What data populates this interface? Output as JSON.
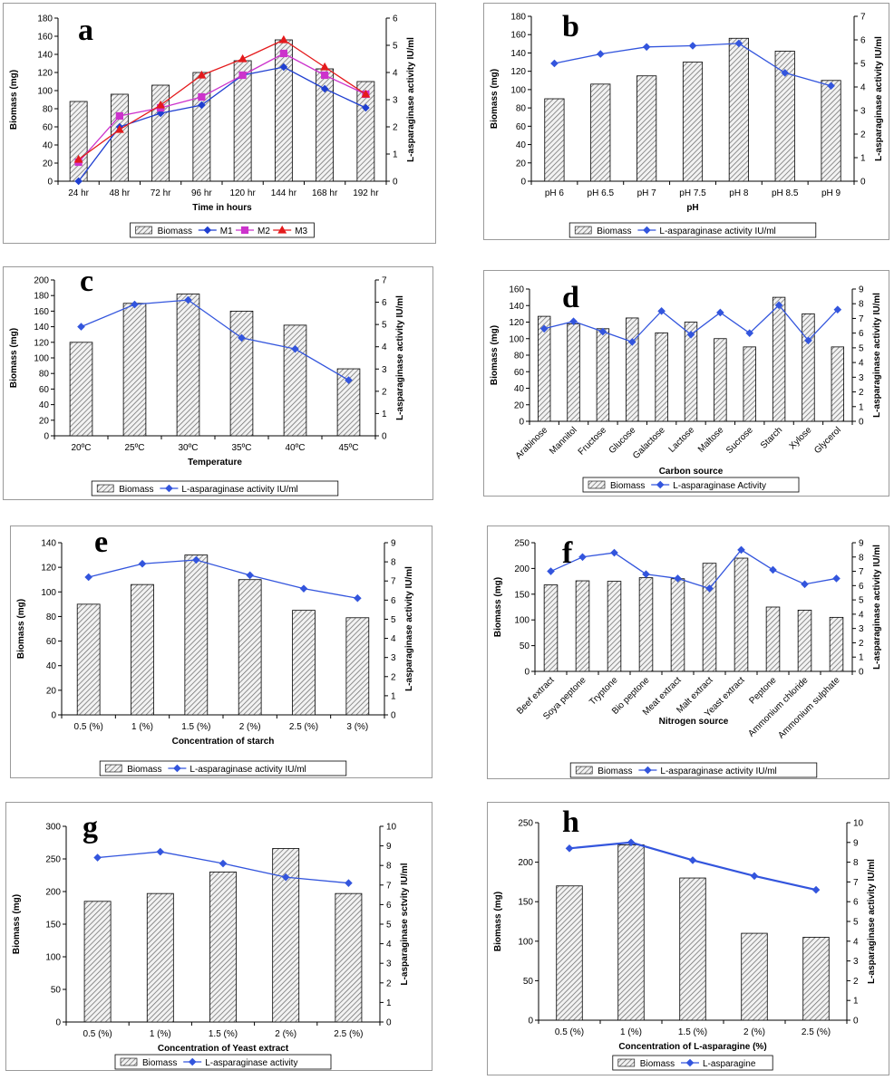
{
  "figure": {
    "colors": {
      "bar_fill": "#d9d9d9",
      "bar_stroke": "#000000",
      "blue": "#1f3fd1",
      "magenta": "#cc33cc",
      "red": "#e41a1c",
      "line_single": "#3355dd"
    }
  },
  "chart_data": [
    {
      "panel": "a",
      "type": "bar+line",
      "categories": [
        "24 hr",
        "48 hr",
        "72 hr",
        "96 hr",
        "120 hr",
        "144 hr",
        "168 hr",
        "192 hr"
      ],
      "bars": {
        "name": "Biomass",
        "values": [
          88,
          96,
          106,
          120,
          133,
          156,
          124,
          110
        ]
      },
      "lines": [
        {
          "name": "M1",
          "color": "#1f3fd1",
          "marker": "diamond",
          "values": [
            0,
            2.0,
            2.5,
            2.8,
            3.9,
            4.2,
            3.4,
            2.7
          ]
        },
        {
          "name": "M2",
          "color": "#cc33cc",
          "marker": "square",
          "values": [
            0.7,
            2.4,
            2.7,
            3.1,
            3.9,
            4.7,
            3.9,
            3.2
          ]
        },
        {
          "name": "M3",
          "color": "#e41a1c",
          "marker": "triangle",
          "values": [
            0.8,
            1.9,
            2.8,
            3.9,
            4.5,
            5.2,
            4.2,
            3.2
          ]
        }
      ],
      "ylim_left": [
        0,
        180
      ],
      "ytick_step_left": 20,
      "ylim_right": [
        0,
        6
      ],
      "ytick_step_right": 1,
      "xlabel": "Time in hours",
      "ylabel": "Biomass (mg)",
      "ylabel_right": "L-asparaginase activity IU/ml",
      "legend": [
        "Biomass",
        "M1",
        "M2",
        "M3"
      ],
      "xtick_rotate": false
    },
    {
      "panel": "b",
      "type": "bar+line",
      "categories": [
        "pH 6",
        "pH 6.5",
        "pH 7",
        "pH 7.5",
        "pH 8",
        "pH 8.5",
        "pH 9"
      ],
      "bars": {
        "name": "Biomass",
        "values": [
          90,
          106,
          115,
          130,
          156,
          142,
          110
        ]
      },
      "lines": [
        {
          "name": "L-asparaginase activity IU/ml",
          "color": "#3355dd",
          "marker": "diamond",
          "values": [
            5.0,
            5.4,
            5.7,
            5.75,
            5.85,
            4.6,
            4.05
          ]
        }
      ],
      "ylim_left": [
        0,
        180
      ],
      "ytick_step_left": 20,
      "ylim_right": [
        0,
        7
      ],
      "ytick_step_right": 1,
      "xlabel": "pH",
      "ylabel": "Biomass (mg)",
      "ylabel_right": "L-asparaginase activity IU/ml",
      "legend": [
        "Biomass",
        "L-asparaginase activity IU/ml"
      ],
      "xtick_rotate": false
    },
    {
      "panel": "c",
      "type": "bar+line",
      "categories": [
        "20ºC",
        "25ºC",
        "30ºC",
        "35ºC",
        "40ºC",
        "45ºC"
      ],
      "bars": {
        "name": "Biomass",
        "values": [
          120,
          170,
          182,
          160,
          142,
          86
        ]
      },
      "lines": [
        {
          "name": "L-asparaginase activity IU/ml",
          "color": "#3355dd",
          "marker": "diamond",
          "values": [
            4.9,
            5.9,
            6.1,
            4.4,
            3.9,
            2.5
          ]
        }
      ],
      "ylim_left": [
        0,
        200
      ],
      "ytick_step_left": 20,
      "ylim_right": [
        0,
        7
      ],
      "ytick_step_right": 1,
      "xlabel": "Temperature",
      "ylabel": "Biomass (mg)",
      "ylabel_right": "L-asparaginase activity IU/ml",
      "legend": [
        "Biomass",
        "L-asparaginase activity IU/ml"
      ],
      "xtick_rotate": false
    },
    {
      "panel": "d",
      "type": "bar+line",
      "categories": [
        "Arabinose",
        "Mannitol",
        "Fructose",
        "Glucose",
        "Galactose",
        "Lactose",
        "Maltose",
        "Sucrose",
        "Starch",
        "Xylose",
        "Glycerol"
      ],
      "bars": {
        "name": "Biomass",
        "values": [
          127,
          118,
          112,
          125,
          107,
          120,
          100,
          90,
          150,
          130,
          90
        ]
      },
      "lines": [
        {
          "name": "L-asparaginase Activity",
          "color": "#3355dd",
          "marker": "diamond",
          "values": [
            6.3,
            6.8,
            6.1,
            5.4,
            7.5,
            5.9,
            7.4,
            6.0,
            7.9,
            5.5,
            7.6
          ]
        }
      ],
      "ylim_left": [
        0,
        160
      ],
      "ytick_step_left": 20,
      "ylim_right": [
        0,
        9
      ],
      "ytick_step_right": 1,
      "xlabel": "Carbon source",
      "ylabel": "Biomass (mg)",
      "ylabel_right": "L-asparaginase activity IU/ml",
      "legend": [
        "Biomass",
        "L-asparaginase Activity"
      ],
      "xtick_rotate": true
    },
    {
      "panel": "e",
      "type": "bar+line",
      "categories": [
        "0.5 (%)",
        "1 (%)",
        "1.5 (%)",
        "2 (%)",
        "2.5 (%)",
        "3 (%)"
      ],
      "bars": {
        "name": "Biomass",
        "values": [
          90,
          106,
          130,
          110,
          85,
          79
        ]
      },
      "lines": [
        {
          "name": "L-asparaginase activity IU/ml",
          "color": "#3355dd",
          "marker": "diamond",
          "values": [
            7.2,
            7.9,
            8.1,
            7.3,
            6.6,
            6.1
          ]
        }
      ],
      "ylim_left": [
        0,
        140
      ],
      "ytick_step_left": 20,
      "ylim_right": [
        0,
        9
      ],
      "ytick_step_right": 1,
      "xlabel": "Concentration of starch",
      "ylabel": "Biomass (mg)",
      "ylabel_right": "L-asparaginase activity IU/ml",
      "legend": [
        "Biomass",
        "L-asparaginase activity IU/ml"
      ],
      "xtick_rotate": false
    },
    {
      "panel": "f",
      "type": "bar+line",
      "categories": [
        "Beef extract",
        "Soya peptone",
        "Tryptone",
        "Bio peptone",
        "Meat extract",
        "Malt extract",
        "Yeast extract",
        "Peptone",
        "Ammonium chloride",
        "Ammonium sulphate"
      ],
      "bars": {
        "name": "Biomass",
        "values": [
          168,
          176,
          175,
          182,
          180,
          210,
          220,
          125,
          119,
          105
        ]
      },
      "lines": [
        {
          "name": "L-asparaginase activity IU/ml",
          "color": "#3355dd",
          "marker": "diamond",
          "values": [
            7.0,
            8.0,
            8.3,
            6.8,
            6.5,
            5.8,
            8.5,
            7.1,
            6.1,
            6.5
          ]
        }
      ],
      "ylim_left": [
        0,
        250
      ],
      "ytick_step_left": 50,
      "ylim_right": [
        0,
        9
      ],
      "ytick_step_right": 1,
      "xlabel": "Nitrogen source",
      "ylabel": "Biomass (mg)",
      "ylabel_right": "L-asparaginase activity IU/ml",
      "legend": [
        "Biomass",
        "L-asparaginase activity IU/ml"
      ],
      "xtick_rotate": true
    },
    {
      "panel": "g",
      "type": "bar+line",
      "categories": [
        "0.5 (%)",
        "1 (%)",
        "1.5 (%)",
        "2 (%)",
        "2.5 (%)"
      ],
      "bars": {
        "name": "Biomass",
        "values": [
          185,
          197,
          230,
          266,
          197
        ]
      },
      "lines": [
        {
          "name": "L-asparaginase activity",
          "color": "#3355dd",
          "marker": "diamond",
          "values": [
            8.4,
            8.7,
            8.1,
            7.4,
            7.1
          ]
        }
      ],
      "ylim_left": [
        0,
        300
      ],
      "ytick_step_left": 50,
      "ylim_right": [
        0,
        10
      ],
      "ytick_step_right": 1,
      "xlabel": "Concentration of Yeast extract",
      "ylabel": "Biomass (mg)",
      "ylabel_right": "L-asparaginase sctvity IU/ml",
      "legend": [
        "Biomass",
        "L-asparaginase activity"
      ],
      "xtick_rotate": false
    },
    {
      "panel": "h",
      "type": "bar+line",
      "categories": [
        "0.5 (%)",
        "1 (%)",
        "1.5 (%)",
        "2 (%)",
        "2.5 (%)"
      ],
      "bars": {
        "name": "Biomass",
        "values": [
          170,
          222,
          180,
          110,
          105
        ]
      },
      "lines": [
        {
          "name": "L-asparagine",
          "color": "#3355dd",
          "marker": "diamond",
          "values": [
            8.7,
            9.0,
            8.1,
            7.3,
            6.6
          ]
        }
      ],
      "ylim_left": [
        0,
        250
      ],
      "ytick_step_left": 50,
      "ylim_right": [
        0,
        10
      ],
      "ytick_step_right": 1,
      "xlabel": "Concentration of L-asparagine (%)",
      "ylabel": "Biomass (mg)",
      "ylabel_right": "L-asparaginase activity IU/ml",
      "legend": [
        "Biomass",
        "L-asparagine"
      ],
      "xtick_rotate": false
    }
  ]
}
